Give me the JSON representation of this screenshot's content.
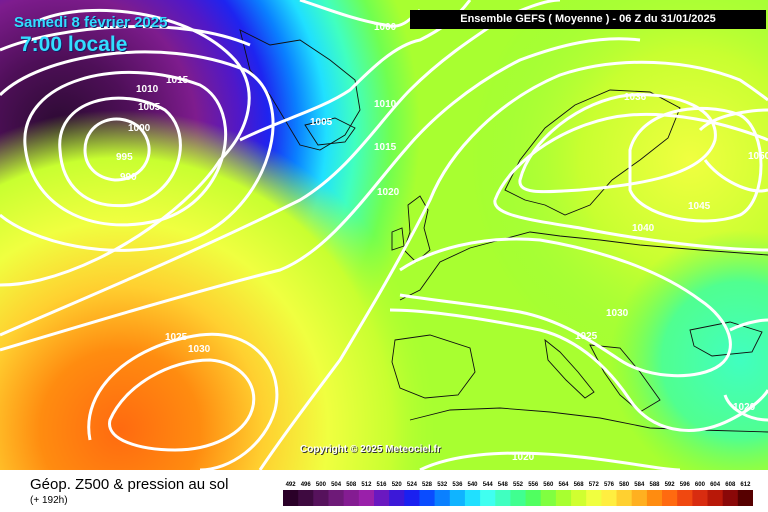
{
  "header": {
    "date": "Samedi 8 février 2025",
    "time": "7:00 locale",
    "run_info": "Ensemble GEFS  ( Moyenne )  -  06 Z du 31/01/2025"
  },
  "footer": {
    "parameter": "Géop. Z500 & pression au sol",
    "lead_time": "(+ 192h)",
    "copyright": "Copyright © 2025 Meteociel.fr"
  },
  "legend": {
    "values": [
      "492",
      "496",
      "500",
      "504",
      "508",
      "512",
      "516",
      "520",
      "524",
      "528",
      "532",
      "536",
      "540",
      "544",
      "548",
      "552",
      "556",
      "560",
      "564",
      "568",
      "572",
      "576",
      "580",
      "584",
      "588",
      "592",
      "596",
      "600",
      "604",
      "608",
      "612"
    ],
    "colors": [
      "#2a0028",
      "#3e0a40",
      "#56125c",
      "#6e1a78",
      "#841c92",
      "#9a20aa",
      "#6a18c0",
      "#3c18d8",
      "#1a20f0",
      "#0a4cff",
      "#0a80ff",
      "#10b4ff",
      "#20e0ff",
      "#40fff0",
      "#40ffc0",
      "#40ff90",
      "#50ff60",
      "#80ff40",
      "#a8ff30",
      "#d0ff30",
      "#f0ff40",
      "#ffee40",
      "#ffd030",
      "#ffb020",
      "#ff8c10",
      "#ff6a10",
      "#f04810",
      "#d82c10",
      "#b81808",
      "#8a0808",
      "#560000"
    ]
  },
  "isobars": {
    "labels": [
      "1000",
      "1015",
      "1010",
      "1005",
      "1000",
      "995",
      "990",
      "1005",
      "1010",
      "1015",
      "1020",
      "1036",
      "1050",
      "1045",
      "1040",
      "1030",
      "1025",
      "1025",
      "1030",
      "1020",
      "1020"
    ]
  }
}
